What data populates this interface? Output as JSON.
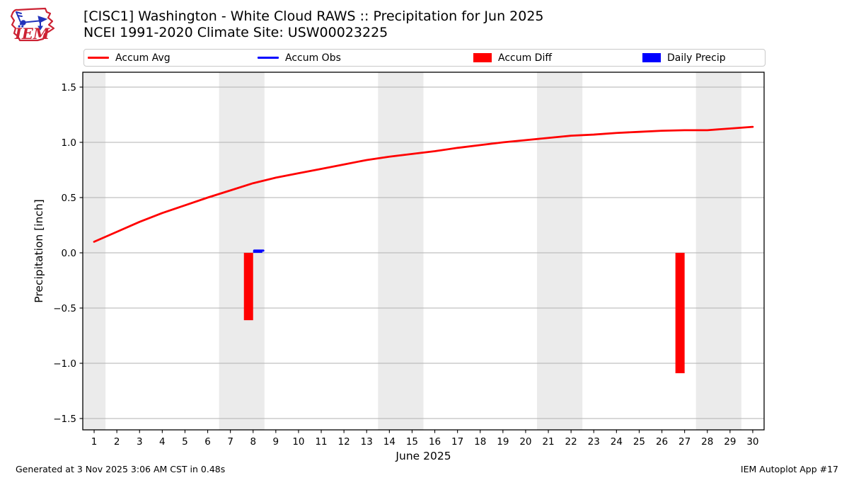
{
  "header": {
    "title": "[CISC1] Washington - White Cloud RAWS :: Precipitation for Jun 2025",
    "subtitle": "NCEI 1991-2020 Climate Site: USW00023225"
  },
  "logo": {
    "text": "IEM"
  },
  "legend": {
    "items": [
      {
        "label": "Accum Avg",
        "type": "line",
        "color": "#ff0000"
      },
      {
        "label": "Accum Obs",
        "type": "line",
        "color": "#0000ff"
      },
      {
        "label": "Accum Diff",
        "type": "patch",
        "color": "#ff0000"
      },
      {
        "label": "Daily Precip",
        "type": "patch",
        "color": "#0000ff"
      }
    ]
  },
  "chart_data": {
    "type": "line",
    "title": "[CISC1] Washington - White Cloud RAWS :: Precipitation for Jun 2025",
    "subtitle": "NCEI 1991-2020 Climate Site: USW00023225",
    "xlabel": "June 2025",
    "ylabel": "Precipitation [inch]",
    "xlim": [
      0.5,
      30.5
    ],
    "ylim": [
      -1.63,
      1.63
    ],
    "grid": "horizontal",
    "grid_color": "#b0b0b0",
    "band_color": "#ebebeb",
    "weekend_bands": [
      [
        0.5,
        1.5
      ],
      [
        6.5,
        8.5
      ],
      [
        13.5,
        15.5
      ],
      [
        20.5,
        22.5
      ],
      [
        27.5,
        29.5
      ]
    ],
    "xticks": [
      1,
      2,
      3,
      4,
      5,
      6,
      7,
      8,
      9,
      10,
      11,
      12,
      13,
      14,
      15,
      16,
      17,
      18,
      19,
      20,
      21,
      22,
      23,
      24,
      25,
      26,
      27,
      28,
      29,
      30
    ],
    "yticks": [
      -1.5,
      -1.0,
      -0.5,
      0.0,
      0.5,
      1.0,
      1.5
    ],
    "ytick_labels": [
      "−1.5",
      "−1.0",
      "−0.5",
      "0.0",
      "0.5",
      "1.0",
      "1.5"
    ],
    "series": [
      {
        "name": "Accum Avg",
        "type": "line",
        "color": "#ff0000",
        "x": [
          1,
          2,
          3,
          4,
          5,
          6,
          7,
          8,
          9,
          10,
          11,
          12,
          13,
          14,
          15,
          16,
          17,
          18,
          19,
          20,
          21,
          22,
          23,
          24,
          25,
          26,
          27,
          28,
          29,
          30
        ],
        "values": [
          0.1,
          0.19,
          0.28,
          0.36,
          0.43,
          0.5,
          0.565,
          0.63,
          0.68,
          0.72,
          0.76,
          0.8,
          0.84,
          0.87,
          0.895,
          0.92,
          0.95,
          0.975,
          1.0,
          1.02,
          1.04,
          1.06,
          1.07,
          1.085,
          1.095,
          1.105,
          1.11,
          1.11,
          1.125,
          1.14
        ]
      },
      {
        "name": "Accum Obs",
        "type": "line",
        "color": "#0000ff",
        "x": [
          8.05,
          8.45
        ],
        "values": [
          0.02,
          0.02
        ]
      }
    ],
    "bars": [
      {
        "name": "Accum Diff",
        "color": "#ff0000",
        "align": "left",
        "points": [
          {
            "x": 8,
            "y": -0.61
          },
          {
            "x": 27,
            "y": -1.09
          }
        ]
      },
      {
        "name": "Daily Precip",
        "color": "#0000ff",
        "align": "right",
        "points": [
          {
            "x": 8,
            "y": 0.02
          }
        ]
      }
    ],
    "legend_position": "top"
  },
  "footer": {
    "left": "Generated at 3 Nov 2025 3:06 AM CST in 0.48s",
    "right": "IEM Autoplot App #17"
  }
}
